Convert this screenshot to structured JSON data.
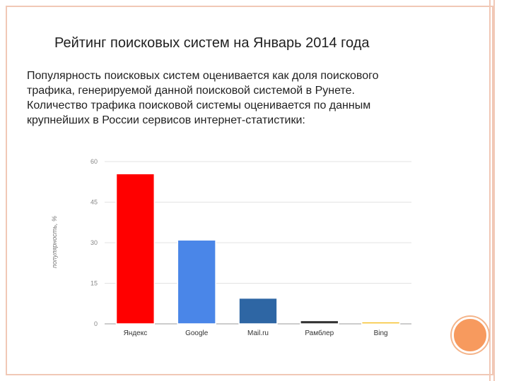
{
  "slide": {
    "title": "Рейтинг поисковых систем на Январь 2014 года",
    "description_lines": [
      "Популярность поисковых систем оценивается как доля поискового",
      "трафика, генерируемой данной поисковой системой в Рунете.",
      "Количество трафика поисковой системы оценивается по данным",
      "крупнейших в России сервисов интернет-статистики:"
    ],
    "accent_color": "#f79a5e",
    "frame_color": "#f1c8b6"
  },
  "chart_data": {
    "type": "bar",
    "title": "",
    "xlabel": "",
    "ylabel": "популярность, %",
    "categories": [
      "Яндекс",
      "Google",
      "Mail.ru",
      "Рамблер",
      "Bing"
    ],
    "values": [
      55.5,
      31,
      9.5,
      1.2,
      0.7
    ],
    "colors": [
      "#ff0000",
      "#4a86e8",
      "#2e66a4",
      "#333333",
      "#f4b400"
    ],
    "ylim": [
      0,
      60
    ],
    "yticks": [
      0,
      15,
      30,
      45,
      60
    ],
    "grid": true
  }
}
